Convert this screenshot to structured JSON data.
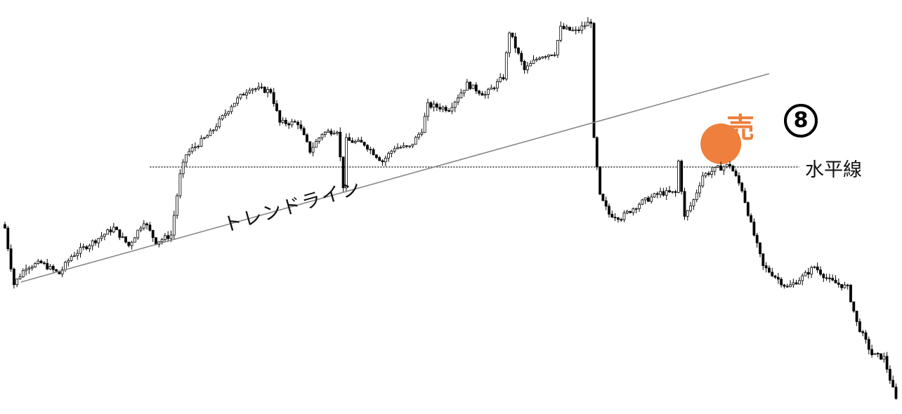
{
  "chart_data": {
    "type": "candlestick",
    "title": "",
    "xlabel": "",
    "ylabel": "",
    "grid": false,
    "bars": 296,
    "close_path": [
      [
        0,
        275
      ],
      [
        2,
        220
      ],
      [
        3,
        195
      ],
      [
        7,
        220
      ],
      [
        12,
        225
      ],
      [
        18,
        210
      ],
      [
        22,
        235
      ],
      [
        29,
        255
      ],
      [
        36,
        275
      ],
      [
        41,
        250
      ],
      [
        46,
        285
      ],
      [
        50,
        255
      ],
      [
        55,
        265
      ],
      [
        58,
        350
      ],
      [
        60,
        380
      ],
      [
        68,
        410
      ],
      [
        75,
        450
      ],
      [
        81,
        475
      ],
      [
        88,
        470
      ],
      [
        91,
        425
      ],
      [
        97,
        425
      ],
      [
        101,
        385
      ],
      [
        105,
        410
      ],
      [
        110,
        415
      ],
      [
        112,
        335
      ],
      [
        113,
        400
      ],
      [
        119,
        395
      ],
      [
        125,
        370
      ],
      [
        129,
        390
      ],
      [
        134,
        390
      ],
      [
        138,
        415
      ],
      [
        140,
        450
      ],
      [
        147,
        445
      ],
      [
        153,
        480
      ],
      [
        159,
        465
      ],
      [
        165,
        490
      ],
      [
        167,
        555
      ],
      [
        172,
        500
      ],
      [
        177,
        520
      ],
      [
        182,
        525
      ],
      [
        184,
        560
      ],
      [
        189,
        555
      ],
      [
        194,
        570
      ],
      [
        195,
        400
      ],
      [
        197,
        320
      ],
      [
        200,
        295
      ],
      [
        204,
        290
      ],
      [
        210,
        310
      ],
      [
        217,
        325
      ],
      [
        222,
        325
      ],
      [
        223,
        370
      ],
      [
        225,
        290
      ],
      [
        228,
        315
      ],
      [
        231,
        350
      ],
      [
        236,
        360
      ],
      [
        240,
        365
      ],
      [
        244,
        330
      ],
      [
        247,
        280
      ],
      [
        251,
        220
      ],
      [
        254,
        210
      ],
      [
        259,
        190
      ],
      [
        264,
        205
      ],
      [
        268,
        220
      ],
      [
        273,
        200
      ],
      [
        279,
        190
      ],
      [
        282,
        140
      ],
      [
        287,
        95
      ],
      [
        291,
        90
      ],
      [
        295,
        30
      ]
    ],
    "trendline": {
      "start": [
        5.3,
        198
      ],
      "end": [
        253,
        495
      ]
    },
    "horizontal_line": {
      "level": 362,
      "from": 48,
      "to": 263
    },
    "sell_marker": {
      "bar": 237,
      "price": 395
    },
    "colors": {
      "up": "#ffffff",
      "down": "#000000",
      "wick": "#000000",
      "trendline": "#888888",
      "sell": "#ee7f3c"
    }
  },
  "annotations": {
    "trendline_label": "トレンドライン",
    "horizontal_label": "水平線",
    "sell_label": "売",
    "step_number": "8"
  }
}
